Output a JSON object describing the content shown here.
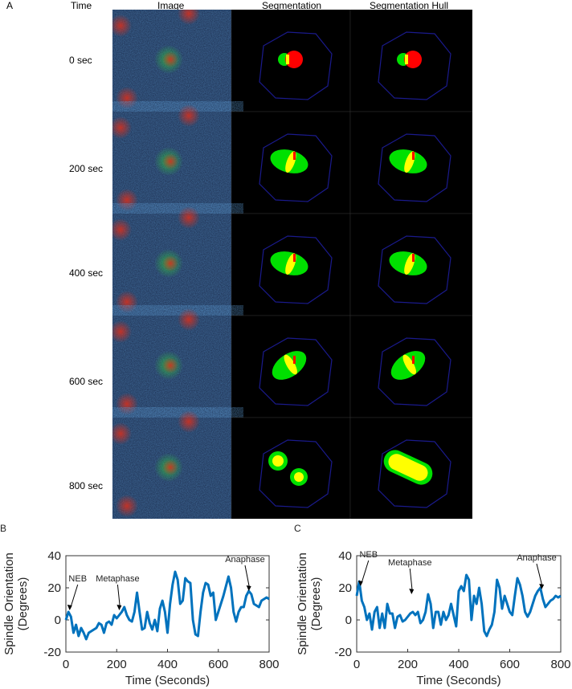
{
  "panel_a": {
    "letter": "A",
    "headers": {
      "time": "Time",
      "image": "Image",
      "segmentation": "Segmentation",
      "hull": "Segmentation Hull"
    },
    "rows": [
      "0 sec",
      "200 sec",
      "400 sec",
      "600 sec",
      "800 sec"
    ]
  },
  "colors": {
    "line": "#0072bd",
    "outline": "#1a1a8c",
    "green": "#00e000",
    "red": "#ff0000",
    "yellow": "#ffff00"
  },
  "chart_data": [
    {
      "panel": "B",
      "type": "line",
      "xlabel": "Time (Seconds)",
      "ylabel": [
        "Spindle Orientation",
        "(Degrees)"
      ],
      "xlim": [
        0,
        800
      ],
      "ylim": [
        -20,
        40
      ],
      "xticks": [
        0,
        200,
        400,
        600,
        800
      ],
      "yticks": [
        -20,
        0,
        20,
        40
      ],
      "annotations": [
        {
          "text": "NEB",
          "x": 15,
          "y": 5
        },
        {
          "text": "Metaphase",
          "x": 210,
          "y": 5
        },
        {
          "text": "Anaphase",
          "x": 720,
          "y": 17
        }
      ],
      "x": [
        0,
        10,
        20,
        30,
        40,
        50,
        60,
        70,
        80,
        90,
        100,
        120,
        130,
        140,
        150,
        160,
        170,
        180,
        190,
        200,
        210,
        220,
        230,
        240,
        250,
        260,
        270,
        280,
        290,
        300,
        310,
        320,
        330,
        340,
        350,
        360,
        370,
        380,
        390,
        400,
        410,
        420,
        430,
        440,
        450,
        460,
        470,
        480,
        490,
        500,
        510,
        520,
        530,
        540,
        550,
        560,
        570,
        580,
        590,
        600,
        620,
        640,
        650,
        660,
        670,
        680,
        690,
        700,
        710,
        720,
        730,
        740,
        750,
        760,
        770,
        780,
        790,
        800
      ],
      "y": [
        0,
        5,
        2,
        -8,
        -3,
        -10,
        -5,
        -8,
        -12,
        -8,
        -7,
        -5,
        -2,
        -3,
        -8,
        -2,
        -1,
        -3,
        3,
        1,
        3,
        5,
        8,
        3,
        0,
        -1,
        5,
        17,
        5,
        -6,
        -5,
        5,
        -2,
        -6,
        0,
        -7,
        7,
        12,
        5,
        -8,
        10,
        22,
        30,
        25,
        10,
        12,
        26,
        24,
        23,
        0,
        -9,
        -10,
        5,
        17,
        23,
        22,
        15,
        17,
        0,
        5,
        15,
        27,
        20,
        5,
        -1,
        5,
        8,
        8,
        15,
        18,
        16,
        10,
        9,
        8,
        12,
        13,
        14,
        13
      ]
    },
    {
      "panel": "C",
      "type": "line",
      "xlabel": "Time (Seconds)",
      "ylabel": [
        "Spindle Orientation",
        "(Degrees)"
      ],
      "xlim": [
        0,
        800
      ],
      "ylim": [
        -20,
        40
      ],
      "xticks": [
        0,
        200,
        400,
        600,
        800
      ],
      "yticks": [
        -20,
        0,
        20,
        40
      ],
      "annotations": [
        {
          "text": "NEB",
          "x": 15,
          "y": 20
        },
        {
          "text": "Metaphase",
          "x": 215,
          "y": 15
        },
        {
          "text": "Anaphase",
          "x": 725,
          "y": 18
        }
      ],
      "x": [
        0,
        10,
        20,
        30,
        40,
        50,
        60,
        70,
        80,
        90,
        100,
        110,
        120,
        130,
        140,
        150,
        160,
        170,
        180,
        190,
        200,
        210,
        220,
        230,
        240,
        250,
        260,
        270,
        280,
        290,
        300,
        310,
        320,
        330,
        340,
        350,
        360,
        370,
        380,
        390,
        400,
        410,
        420,
        430,
        440,
        450,
        460,
        470,
        480,
        490,
        500,
        510,
        520,
        530,
        540,
        550,
        560,
        570,
        580,
        590,
        600,
        610,
        620,
        630,
        640,
        650,
        660,
        670,
        680,
        690,
        700,
        710,
        720,
        730,
        740,
        750,
        760,
        770,
        780,
        790,
        800
      ],
      "y": [
        15,
        24,
        12,
        8,
        0,
        4,
        -6,
        5,
        8,
        -5,
        4,
        -5,
        10,
        4,
        4,
        -5,
        2,
        3,
        -1,
        0,
        2,
        4,
        5,
        3,
        5,
        -2,
        0,
        5,
        16,
        10,
        -5,
        5,
        5,
        -3,
        5,
        0,
        3,
        10,
        3,
        -4,
        18,
        21,
        18,
        28,
        25,
        0,
        15,
        10,
        20,
        10,
        -7,
        -10,
        -6,
        -3,
        5,
        25,
        20,
        7,
        15,
        10,
        5,
        3,
        15,
        26,
        22,
        15,
        5,
        2,
        5,
        10,
        15,
        18,
        20,
        13,
        8,
        10,
        12,
        13,
        15,
        14,
        15
      ]
    }
  ]
}
